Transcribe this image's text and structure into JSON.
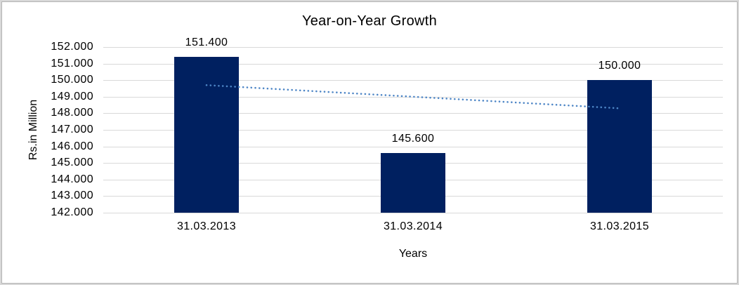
{
  "chart_data": {
    "type": "bar",
    "title": "Year-on-Year Growth",
    "xlabel": "Years",
    "ylabel": "Rs.in Million",
    "categories": [
      "31.03.2013",
      "31.03.2014",
      "31.03.2015"
    ],
    "values": [
      151.4,
      145.6,
      150.0
    ],
    "value_labels": [
      "151.400",
      "145.600",
      "150.000"
    ],
    "ylim": [
      142,
      152
    ],
    "ytick_step": 1,
    "ytick_labels": [
      "152.000",
      "151.000",
      "150.000",
      "149.000",
      "148.000",
      "147.000",
      "146.000",
      "145.000",
      "144.000",
      "143.000",
      "142.000"
    ],
    "grid": true,
    "legend": "none",
    "trendline": {
      "type": "linear",
      "style": "dotted",
      "start_value": 149.7,
      "end_value": 148.3,
      "color": "#4e86c6"
    },
    "colors": {
      "bar": "#002060",
      "gridline": "#d9d9d9",
      "text": "#000000",
      "background": "#ffffff"
    }
  }
}
